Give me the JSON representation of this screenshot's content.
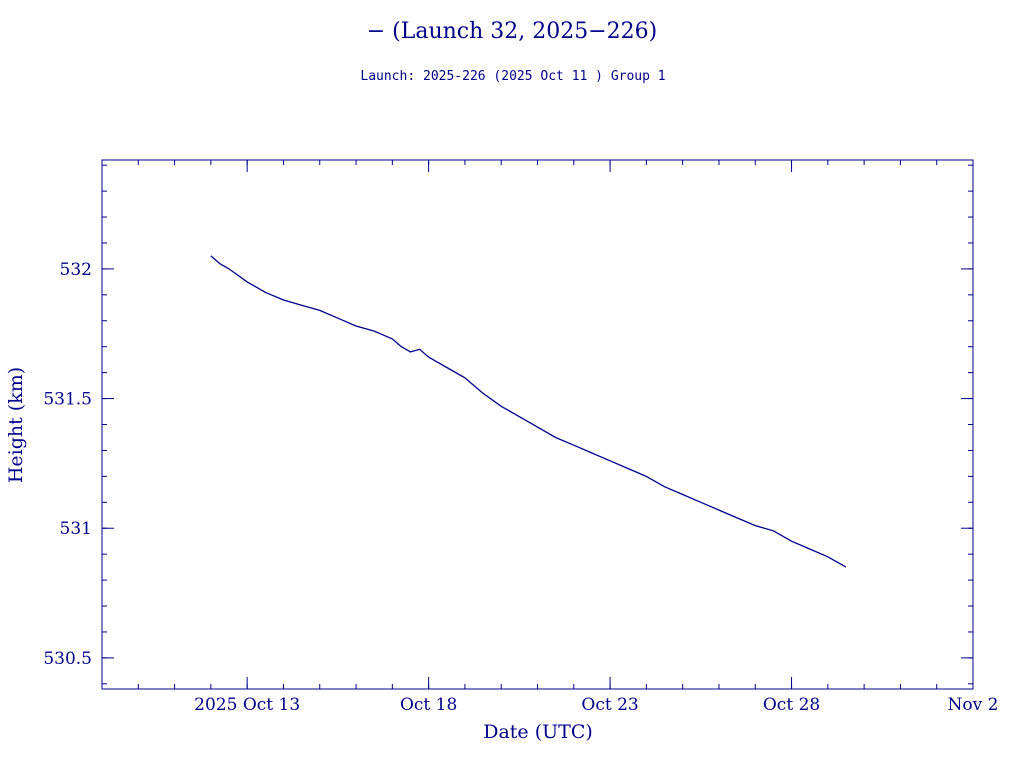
{
  "chart_data": {
    "type": "line",
    "title": "− (Launch 32, 2025−226)",
    "subtitle": "Launch: 2025-226  (2025 Oct 11 )  Group 1",
    "xlabel": "Date (UTC)",
    "ylabel": "Height (km)",
    "x_tick_labels": [
      "2025 Oct 13",
      "Oct 18",
      "Oct 23",
      "Oct 28",
      "Nov  2"
    ],
    "x_tick_dates": [
      "2025-10-13",
      "2025-10-18",
      "2025-10-23",
      "2025-10-28",
      "2025-11-02"
    ],
    "xlim": [
      "2025-10-09",
      "2025-11-02"
    ],
    "y_tick_labels": [
      "530.5",
      "531",
      "531.5",
      "532"
    ],
    "y_ticks": [
      530.5,
      531,
      531.5,
      532
    ],
    "ylim": [
      530.38,
      532.42
    ],
    "grid": false,
    "colors": {
      "axes": "#00008b",
      "line": "#00008b"
    },
    "series": [
      {
        "x": [
          "2025-10-12T00:00",
          "2025-10-12T06:00",
          "2025-10-12T12:00",
          "2025-10-13T00:00",
          "2025-10-13T06:00",
          "2025-10-13T12:00",
          "2025-10-14T00:00",
          "2025-10-14T12:00",
          "2025-10-15T00:00",
          "2025-10-15T12:00",
          "2025-10-16T00:00",
          "2025-10-16T12:00",
          "2025-10-17T00:00",
          "2025-10-17T06:00",
          "2025-10-17T12:00",
          "2025-10-17T18:00",
          "2025-10-18T00:00",
          "2025-10-18T06:00",
          "2025-10-18T12:00",
          "2025-10-19T00:00",
          "2025-10-19T06:00",
          "2025-10-19T12:00",
          "2025-10-20T00:00",
          "2025-10-20T12:00",
          "2025-10-21T00:00",
          "2025-10-21T12:00",
          "2025-10-22T00:00",
          "2025-10-22T12:00",
          "2025-10-23T00:00",
          "2025-10-23T12:00",
          "2025-10-24T00:00",
          "2025-10-24T12:00",
          "2025-10-25T00:00",
          "2025-10-25T12:00",
          "2025-10-26T00:00",
          "2025-10-26T12:00",
          "2025-10-27T00:00",
          "2025-10-27T12:00",
          "2025-10-28T00:00",
          "2025-10-28T12:00",
          "2025-10-29T00:00",
          "2025-10-29T06:00",
          "2025-10-29T12:00"
        ],
        "y": [
          532.05,
          532.02,
          532.0,
          531.95,
          531.93,
          531.91,
          531.88,
          531.86,
          531.84,
          531.81,
          531.78,
          531.76,
          531.73,
          531.7,
          531.68,
          531.69,
          531.66,
          531.64,
          531.62,
          531.58,
          531.55,
          531.52,
          531.47,
          531.43,
          531.39,
          531.35,
          531.32,
          531.29,
          531.26,
          531.23,
          531.2,
          531.16,
          531.13,
          531.1,
          531.07,
          531.04,
          531.01,
          530.99,
          530.95,
          530.92,
          530.89,
          530.87,
          530.85
        ]
      }
    ]
  }
}
